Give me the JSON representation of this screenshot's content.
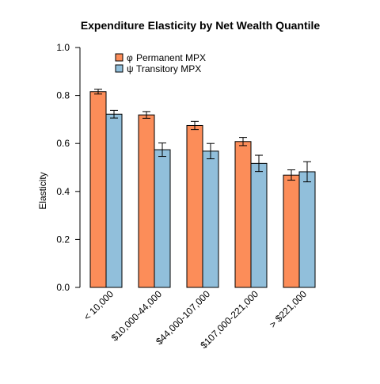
{
  "chart_data": {
    "type": "bar",
    "title": "Expenditure Elasticity  by  Net Wealth Quantile",
    "xlabel": "",
    "ylabel": "Elasticity",
    "ylim": [
      0,
      1.0
    ],
    "yticks": [
      "0.0",
      "0.2",
      "0.4",
      "0.6",
      "0.8",
      "1.0"
    ],
    "categories": [
      "< 10,000",
      "$10,000-44,000",
      "$44,000-107,000",
      "$107,000-221,000",
      "> $221,000"
    ],
    "series": [
      {
        "name": "Permanent MPX",
        "symbol": "φ",
        "color": "#fc8d59",
        "values": [
          0.816,
          0.719,
          0.675,
          0.608,
          0.468
        ],
        "err_low": [
          0.806,
          0.705,
          0.658,
          0.591,
          0.447
        ],
        "err_high": [
          0.826,
          0.733,
          0.692,
          0.625,
          0.49
        ]
      },
      {
        "name": "Transitory MPX",
        "symbol": "ψ",
        "color": "#91bfdb",
        "values": [
          0.722,
          0.574,
          0.568,
          0.517,
          0.482
        ],
        "err_low": [
          0.706,
          0.546,
          0.536,
          0.483,
          0.44
        ],
        "err_high": [
          0.738,
          0.602,
          0.6,
          0.551,
          0.524
        ]
      }
    ],
    "grid": false,
    "legend_position": "top-left"
  }
}
